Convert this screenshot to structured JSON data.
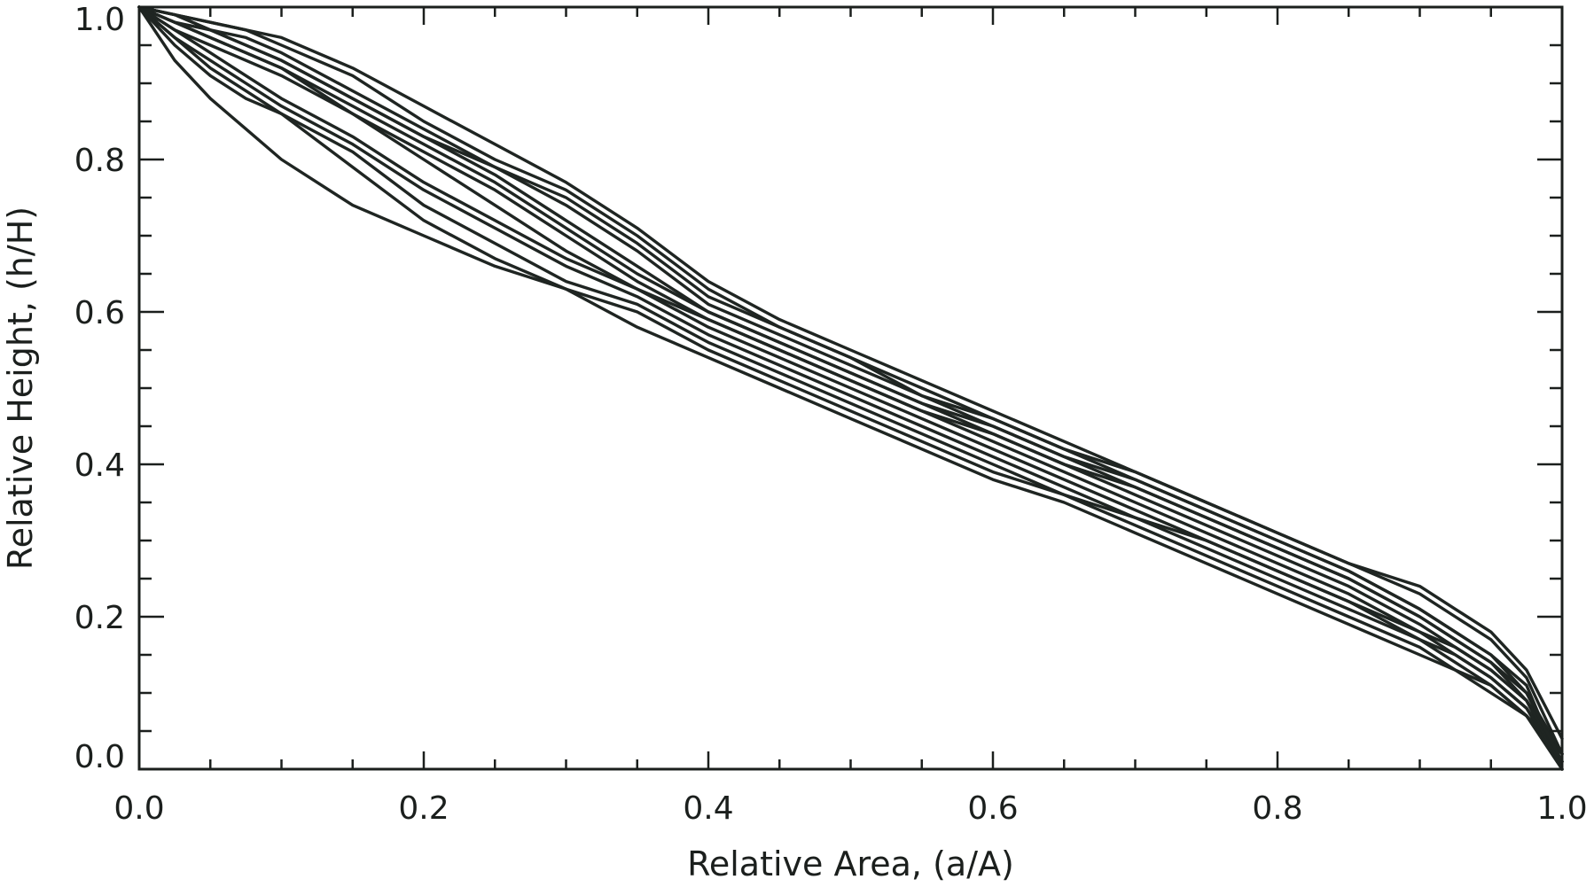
{
  "chart_data": {
    "type": "line",
    "title": "",
    "xlabel": "Relative Area, (a/A)",
    "ylabel": "Relative Height, (h/H)",
    "xlim": [
      0,
      1
    ],
    "ylim": [
      0,
      1
    ],
    "x_ticks": [
      "0.0",
      "0.2",
      "0.4",
      "0.6",
      "0.8",
      "1.0"
    ],
    "y_ticks": [
      "0.0",
      "0.2",
      "0.4",
      "0.6",
      "0.8",
      "1.0"
    ],
    "x_minor_step": 0.05,
    "y_minor_step": 0.05,
    "grid": false,
    "legend": "none",
    "line_color": "#1f2522",
    "x": [
      0,
      0.025,
      0.05,
      0.075,
      0.1,
      0.15,
      0.2,
      0.25,
      0.3,
      0.35,
      0.4,
      0.45,
      0.5,
      0.55,
      0.6,
      0.65,
      0.7,
      0.75,
      0.8,
      0.85,
      0.9,
      0.925,
      0.95,
      0.975,
      1.0
    ],
    "series": [
      {
        "values": [
          1.0,
          0.93,
          0.88,
          0.84,
          0.8,
          0.74,
          0.7,
          0.66,
          0.63,
          0.58,
          0.54,
          0.5,
          0.46,
          0.42,
          0.38,
          0.35,
          0.31,
          0.27,
          0.23,
          0.19,
          0.15,
          0.13,
          0.1,
          0.07,
          0.0
        ]
      },
      {
        "values": [
          1.0,
          0.95,
          0.91,
          0.88,
          0.86,
          0.79,
          0.72,
          0.67,
          0.63,
          0.6,
          0.55,
          0.51,
          0.47,
          0.43,
          0.39,
          0.36,
          0.32,
          0.28,
          0.24,
          0.2,
          0.16,
          0.13,
          0.11,
          0.07,
          0.01
        ]
      },
      {
        "values": [
          1.0,
          0.96,
          0.92,
          0.89,
          0.86,
          0.81,
          0.74,
          0.69,
          0.64,
          0.61,
          0.56,
          0.52,
          0.48,
          0.44,
          0.4,
          0.36,
          0.33,
          0.29,
          0.25,
          0.21,
          0.17,
          0.14,
          0.11,
          0.07,
          0.02
        ]
      },
      {
        "values": [
          1.0,
          0.96,
          0.93,
          0.9,
          0.87,
          0.82,
          0.76,
          0.71,
          0.66,
          0.62,
          0.57,
          0.53,
          0.49,
          0.45,
          0.41,
          0.37,
          0.33,
          0.3,
          0.26,
          0.22,
          0.17,
          0.15,
          0.12,
          0.08,
          0.0
        ]
      },
      {
        "values": [
          1.0,
          0.97,
          0.94,
          0.91,
          0.88,
          0.83,
          0.77,
          0.72,
          0.67,
          0.63,
          0.58,
          0.54,
          0.5,
          0.46,
          0.42,
          0.38,
          0.34,
          0.3,
          0.26,
          0.22,
          0.18,
          0.15,
          0.12,
          0.08,
          0.01
        ]
      },
      {
        "values": [
          1.0,
          0.97,
          0.95,
          0.93,
          0.91,
          0.86,
          0.8,
          0.74,
          0.68,
          0.63,
          0.59,
          0.55,
          0.51,
          0.47,
          0.43,
          0.39,
          0.35,
          0.31,
          0.27,
          0.23,
          0.18,
          0.16,
          0.13,
          0.09,
          0.02
        ]
      },
      {
        "values": [
          1.0,
          0.98,
          0.96,
          0.94,
          0.92,
          0.86,
          0.81,
          0.76,
          0.7,
          0.64,
          0.59,
          0.55,
          0.51,
          0.47,
          0.44,
          0.4,
          0.36,
          0.32,
          0.28,
          0.24,
          0.19,
          0.16,
          0.13,
          0.09,
          0.0
        ]
      },
      {
        "values": [
          1.0,
          0.98,
          0.96,
          0.94,
          0.92,
          0.87,
          0.82,
          0.77,
          0.71,
          0.65,
          0.6,
          0.56,
          0.52,
          0.48,
          0.44,
          0.4,
          0.37,
          0.33,
          0.29,
          0.25,
          0.2,
          0.17,
          0.14,
          0.09,
          0.01
        ]
      },
      {
        "values": [
          1.0,
          0.98,
          0.97,
          0.95,
          0.93,
          0.88,
          0.83,
          0.78,
          0.72,
          0.66,
          0.6,
          0.56,
          0.52,
          0.48,
          0.45,
          0.41,
          0.37,
          0.33,
          0.29,
          0.25,
          0.2,
          0.17,
          0.14,
          0.1,
          0.02
        ]
      },
      {
        "values": [
          1.0,
          0.99,
          0.97,
          0.95,
          0.93,
          0.88,
          0.83,
          0.79,
          0.74,
          0.68,
          0.61,
          0.57,
          0.53,
          0.49,
          0.45,
          0.41,
          0.38,
          0.34,
          0.3,
          0.26,
          0.21,
          0.18,
          0.15,
          0.11,
          0.0
        ]
      },
      {
        "values": [
          1.0,
          0.99,
          0.97,
          0.96,
          0.94,
          0.89,
          0.84,
          0.79,
          0.75,
          0.69,
          0.62,
          0.58,
          0.54,
          0.49,
          0.46,
          0.42,
          0.38,
          0.34,
          0.3,
          0.26,
          0.21,
          0.18,
          0.15,
          0.1,
          0.01
        ]
      },
      {
        "values": [
          1.0,
          0.99,
          0.98,
          0.97,
          0.95,
          0.91,
          0.85,
          0.8,
          0.76,
          0.7,
          0.63,
          0.58,
          0.54,
          0.5,
          0.46,
          0.42,
          0.39,
          0.35,
          0.31,
          0.27,
          0.23,
          0.2,
          0.17,
          0.12,
          0.02
        ]
      },
      {
        "values": [
          1.0,
          0.99,
          0.98,
          0.97,
          0.96,
          0.92,
          0.87,
          0.82,
          0.77,
          0.71,
          0.64,
          0.59,
          0.55,
          0.51,
          0.47,
          0.43,
          0.39,
          0.35,
          0.31,
          0.27,
          0.24,
          0.21,
          0.18,
          0.13,
          0.04
        ]
      }
    ]
  }
}
